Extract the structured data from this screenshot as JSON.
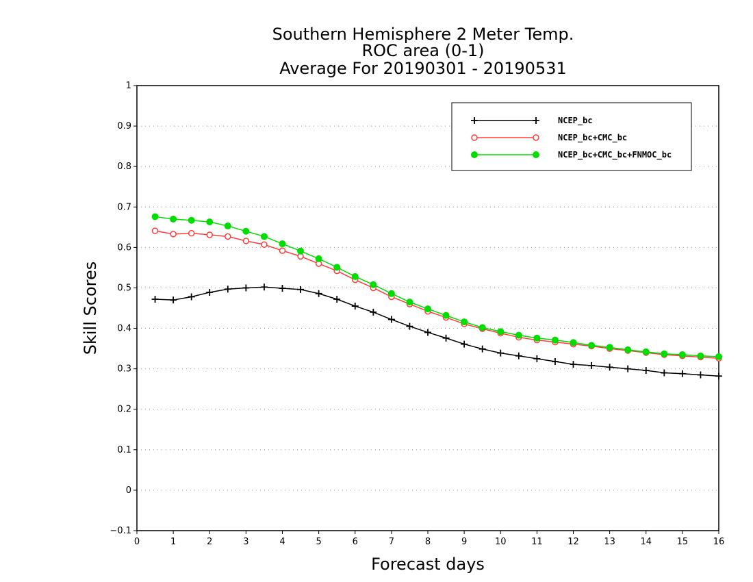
{
  "chart_data": {
    "type": "line",
    "title": [
      "Southern Hemisphere 2 Meter Temp.",
      "ROC area (0-1)",
      "Average For 20190301 - 20190531"
    ],
    "xlabel": "Forecast days",
    "ylabel": "Skill Scores",
    "xlim": [
      0,
      16
    ],
    "ylim": [
      -0.1,
      1
    ],
    "xticks": [
      "0",
      "1",
      "2",
      "3",
      "4",
      "5",
      "6",
      "7",
      "8",
      "9",
      "10",
      "11",
      "12",
      "13",
      "14",
      "15",
      "16"
    ],
    "yticks": [
      "−0.1",
      "0",
      "0.1",
      "0.2",
      "0.3",
      "0.4",
      "0.5",
      "0.6",
      "0.7",
      "0.8",
      "0.9",
      "1"
    ],
    "grid": "horizontal dotted",
    "legend_position": "top-right",
    "x": [
      0.5,
      1.0,
      1.5,
      2.0,
      2.5,
      3.0,
      3.5,
      4.0,
      4.5,
      5.0,
      5.5,
      6.0,
      6.5,
      7.0,
      7.5,
      8.0,
      8.5,
      9.0,
      9.5,
      10.0,
      10.5,
      11.0,
      11.5,
      12.0,
      12.5,
      13.0,
      13.5,
      14.0,
      14.5,
      15.0,
      15.5,
      16.0
    ],
    "series": [
      {
        "name": "NCEP_bc",
        "color": "#000000",
        "marker": "plus",
        "values": [
          0.472,
          0.47,
          0.478,
          0.489,
          0.497,
          0.5,
          0.502,
          0.499,
          0.496,
          0.486,
          0.472,
          0.455,
          0.44,
          0.422,
          0.405,
          0.39,
          0.376,
          0.361,
          0.349,
          0.339,
          0.332,
          0.325,
          0.318,
          0.311,
          0.308,
          0.304,
          0.3,
          0.296,
          0.29,
          0.288,
          0.285,
          0.282
        ]
      },
      {
        "name": "NCEP_bc+CMC_bc",
        "color": "#ff3b3b",
        "marker": "open-circle",
        "values": [
          0.641,
          0.633,
          0.635,
          0.631,
          0.627,
          0.616,
          0.607,
          0.592,
          0.578,
          0.56,
          0.542,
          0.52,
          0.5,
          0.478,
          0.46,
          0.442,
          0.427,
          0.411,
          0.399,
          0.388,
          0.378,
          0.371,
          0.366,
          0.361,
          0.356,
          0.35,
          0.345,
          0.34,
          0.335,
          0.332,
          0.329,
          0.326
        ]
      },
      {
        "name": "NCEP_bc+CMC_bc+FNMOC_bc",
        "color": "#00dd00",
        "marker": "filled-circle",
        "values": [
          0.676,
          0.67,
          0.667,
          0.663,
          0.653,
          0.64,
          0.627,
          0.609,
          0.591,
          0.572,
          0.551,
          0.528,
          0.508,
          0.486,
          0.465,
          0.448,
          0.432,
          0.416,
          0.402,
          0.392,
          0.383,
          0.376,
          0.371,
          0.365,
          0.358,
          0.353,
          0.347,
          0.342,
          0.337,
          0.335,
          0.332,
          0.33
        ]
      }
    ]
  }
}
